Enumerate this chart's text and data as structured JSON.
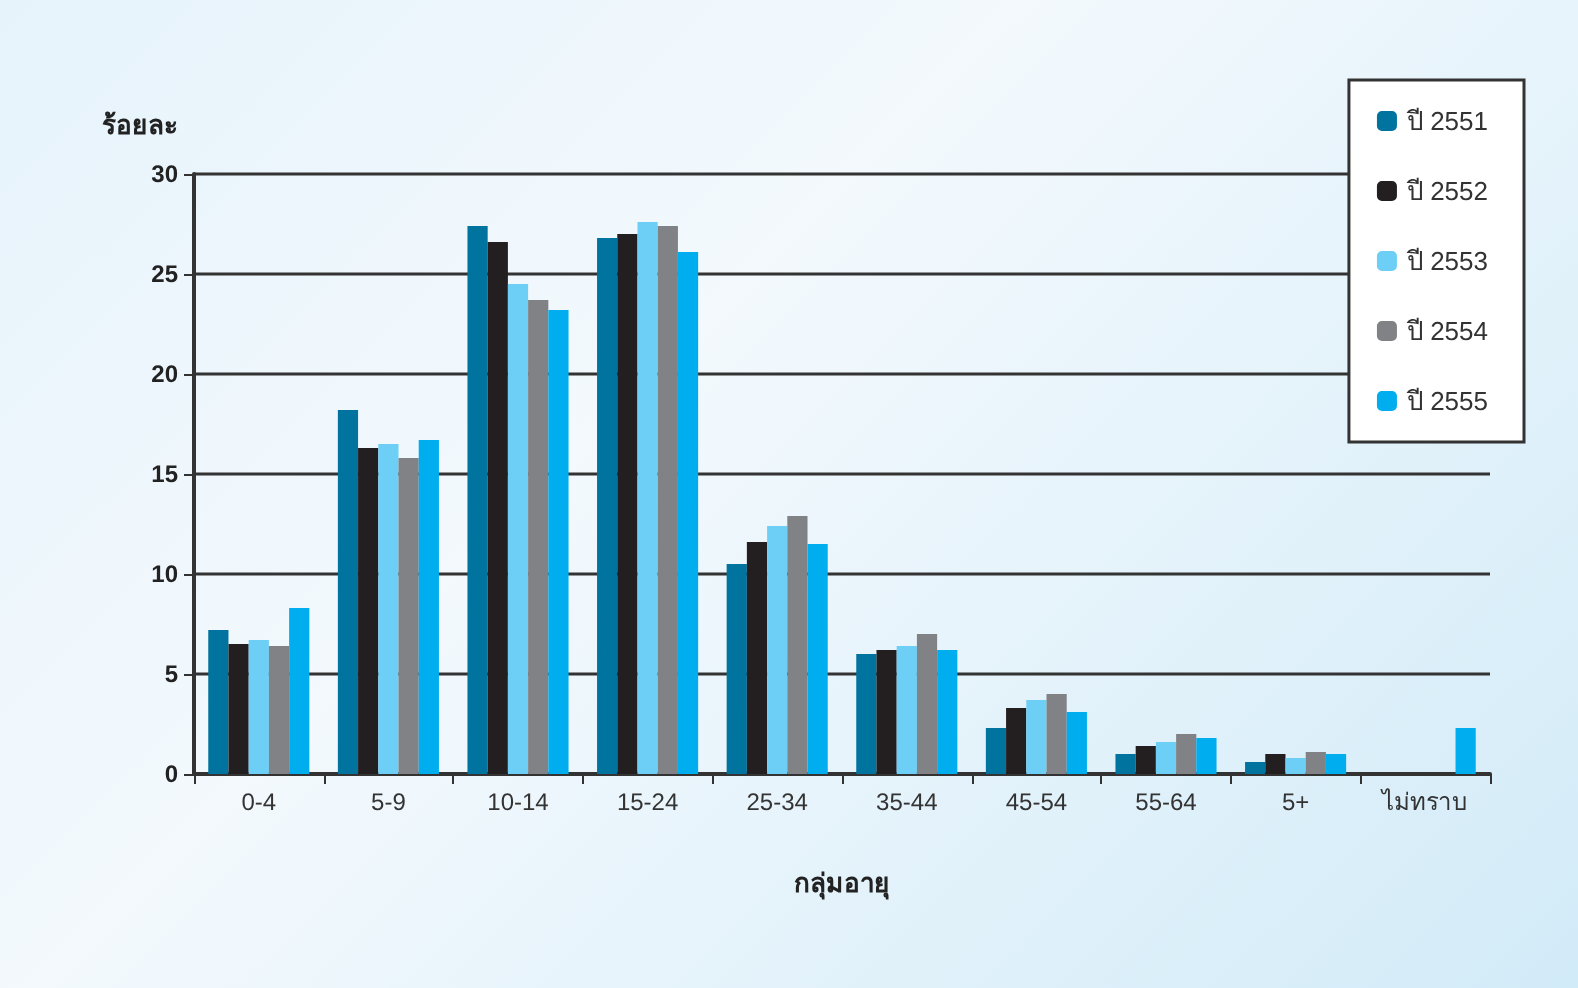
{
  "chart_data": {
    "type": "bar",
    "ylabel": "ร้อยละ",
    "xlabel": "กลุ่มอายุ",
    "categories": [
      "0-4",
      "5-9",
      "10-14",
      "15-24",
      "25-34",
      "35-44",
      "45-54",
      "55-64",
      "5+",
      "ไม่ทราบ"
    ],
    "series": [
      {
        "name": "ปี 2551",
        "color": "#00739e",
        "values": [
          7.2,
          18.2,
          27.4,
          26.8,
          10.5,
          6.0,
          2.3,
          1.0,
          0.6,
          null
        ]
      },
      {
        "name": "ปี 2552",
        "color": "#231f20",
        "values": [
          6.5,
          16.3,
          26.6,
          27.0,
          11.6,
          6.2,
          3.3,
          1.4,
          1.0,
          null
        ]
      },
      {
        "name": "ปี 2553",
        "color": "#6dcff6",
        "values": [
          6.7,
          16.5,
          24.5,
          27.6,
          12.4,
          6.4,
          3.7,
          1.6,
          0.8,
          null
        ]
      },
      {
        "name": "ปี 2554",
        "color": "#808285",
        "values": [
          6.4,
          15.8,
          23.7,
          27.4,
          12.9,
          7.0,
          4.0,
          2.0,
          1.1,
          null
        ]
      },
      {
        "name": "ปี 2555",
        "color": "#00aeef",
        "values": [
          8.3,
          16.7,
          23.2,
          26.1,
          11.5,
          6.2,
          3.1,
          1.8,
          1.0,
          2.3
        ]
      }
    ],
    "ylim": [
      0,
      30
    ],
    "yticks": [
      0,
      5,
      10,
      15,
      20,
      25,
      30
    ],
    "grid": "y",
    "legend": "top right"
  }
}
